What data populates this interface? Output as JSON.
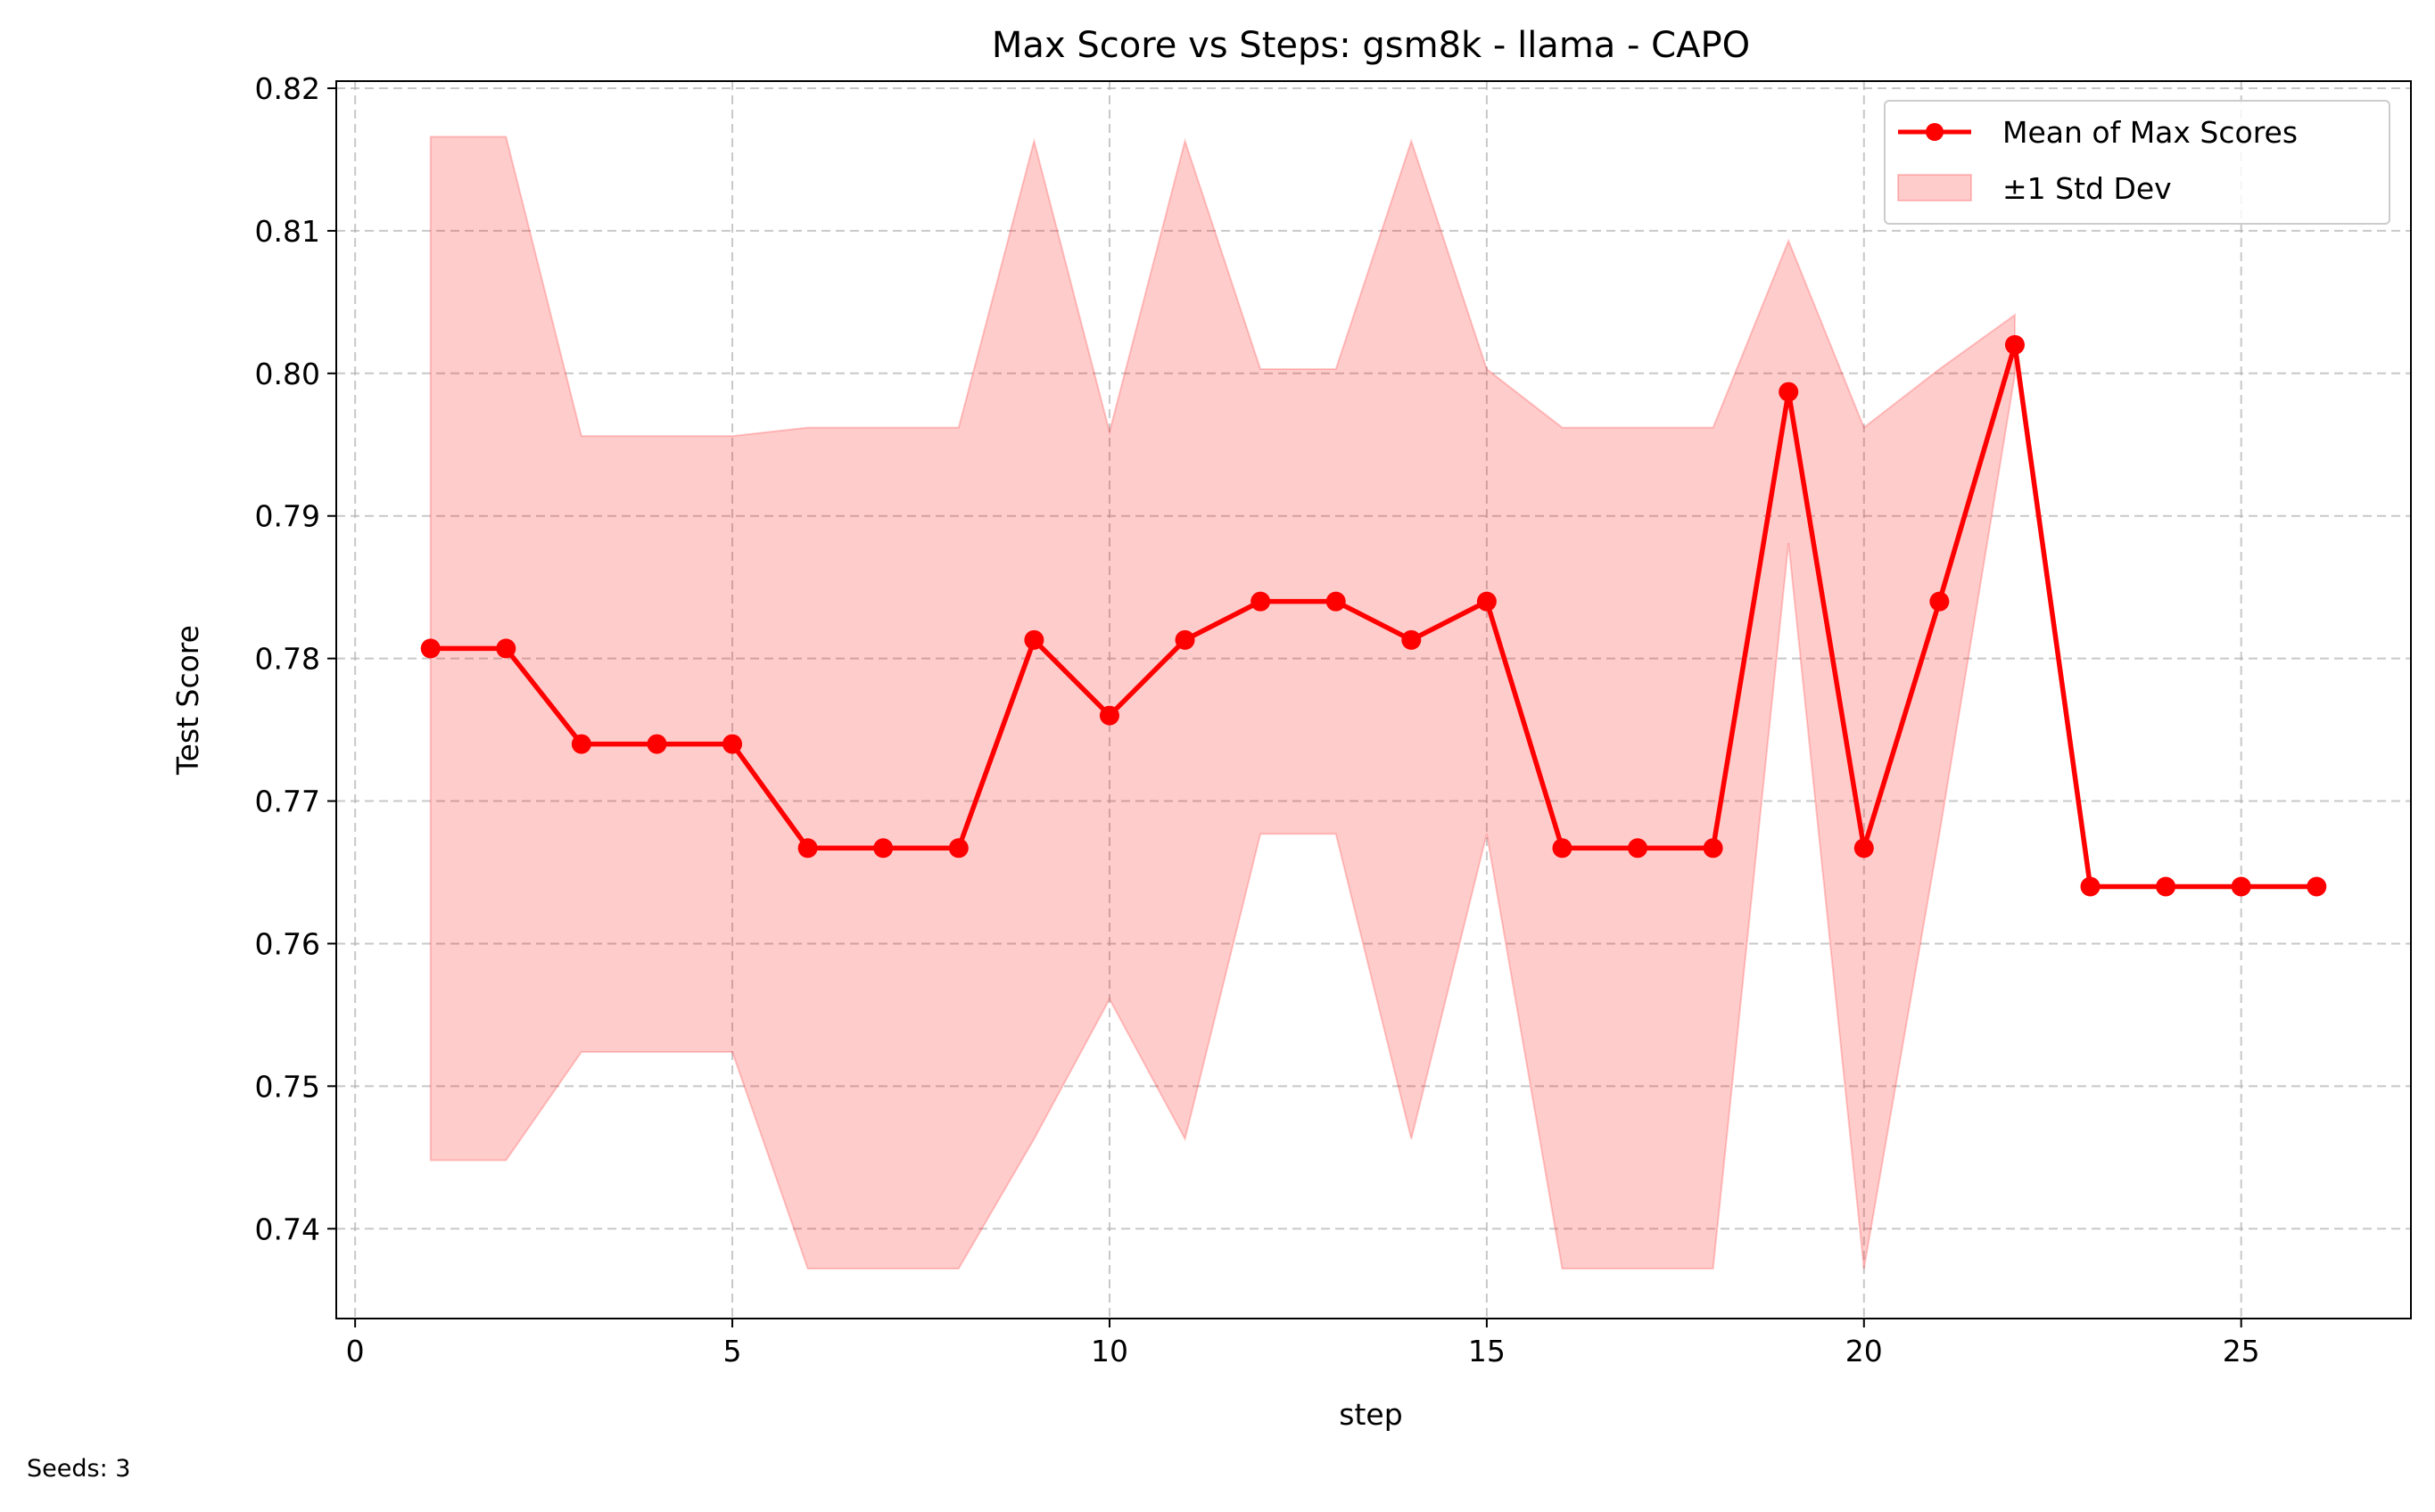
{
  "chart_data": {
    "type": "line",
    "title": "Max Score vs Steps: gsm8k - llama - CAPO",
    "xlabel": "step",
    "ylabel": "Test Score",
    "xlim": [
      -0.25,
      27.25
    ],
    "ylim": [
      0.7337,
      0.8205
    ],
    "x_ticks": [
      0,
      5,
      10,
      15,
      20,
      25
    ],
    "y_ticks": [
      0.74,
      0.75,
      0.76,
      0.77,
      0.78,
      0.79,
      0.8,
      0.81,
      0.82
    ],
    "grid": true,
    "legend_position": "upper right",
    "legend": [
      "Mean of Max Scores",
      "±1 Std Dev"
    ],
    "series": [
      {
        "name": "Mean of Max Scores",
        "color": "#ff0000",
        "x": [
          1,
          2,
          3,
          4,
          5,
          6,
          7,
          8,
          9,
          10,
          11,
          12,
          13,
          14,
          15,
          16,
          17,
          18,
          19,
          20,
          21,
          22,
          23,
          24,
          25,
          26
        ],
        "values": [
          0.7807,
          0.7807,
          0.774,
          0.774,
          0.774,
          0.7667,
          0.7667,
          0.7667,
          0.7813,
          0.776,
          0.7813,
          0.784,
          0.784,
          0.7813,
          0.784,
          0.7667,
          0.7667,
          0.7667,
          0.7987,
          0.7667,
          0.784,
          0.802,
          0.764,
          0.764,
          0.764,
          0.764
        ]
      }
    ],
    "band": {
      "name": "±1 Std Dev",
      "color": "#ff0000",
      "opacity": 0.2,
      "x": [
        1,
        2,
        3,
        4,
        5,
        6,
        7,
        8,
        9,
        10,
        11,
        12,
        13,
        14,
        15,
        16,
        17,
        18,
        19,
        20,
        21,
        22
      ],
      "upper": [
        0.8166,
        0.8166,
        0.7956,
        0.7956,
        0.7956,
        0.7962,
        0.7962,
        0.7962,
        0.8163,
        0.7959,
        0.8163,
        0.8003,
        0.8003,
        0.8163,
        0.8003,
        0.7962,
        0.7962,
        0.7962,
        0.8093,
        0.7962,
        0.8003,
        0.8041
      ],
      "lower": [
        0.7448,
        0.7448,
        0.7524,
        0.7524,
        0.7524,
        0.7372,
        0.7372,
        0.7372,
        0.7463,
        0.7561,
        0.7463,
        0.7677,
        0.7677,
        0.7463,
        0.7677,
        0.7372,
        0.7372,
        0.7372,
        0.7881,
        0.7372,
        0.7677,
        0.7999
      ]
    }
  },
  "footnote": "Seeds: 3"
}
